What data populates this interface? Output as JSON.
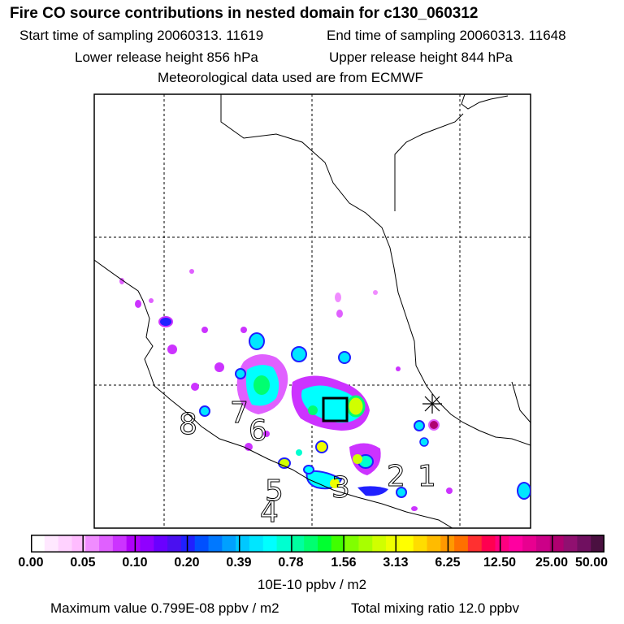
{
  "header": {
    "title": "Fire CO source contributions in nested domain for c130_060312",
    "start_label": "Start time of sampling 20060313. 11619",
    "end_label": "End time of sampling 20060313. 11648",
    "lower_label": "Lower release height  856 hPa",
    "upper_label": "Upper release height  844 hPa",
    "met_label": "Meteorological data used are from ECMWF"
  },
  "map": {
    "time_markers": [
      "8",
      "7",
      "6",
      "5",
      "4",
      "3",
      "2",
      "1"
    ],
    "receptor_marker": "*",
    "grid": "dashed",
    "coastline_color": "#000000"
  },
  "colorbar": {
    "labels": [
      "0.00",
      "0.05",
      "0.10",
      "0.20",
      "0.39",
      "0.78",
      "1.56",
      "3.13",
      "6.25",
      "12.50",
      "25.00",
      "50.00"
    ],
    "colors": [
      "#ffffff",
      "#ffe8ff",
      "#ffd2ff",
      "#ffbcff",
      "#f08cff",
      "#e060ff",
      "#cc33ff",
      "#b000f8",
      "#9000ff",
      "#6a00ff",
      "#4a10f0",
      "#2020ff",
      "#0050ff",
      "#0078ff",
      "#00a0ff",
      "#00c8ff",
      "#00e6ff",
      "#00ffff",
      "#00ffd0",
      "#00ffa0",
      "#00ff70",
      "#00ff30",
      "#40ff00",
      "#80ff00",
      "#a8ff00",
      "#d0ff00",
      "#eeff00",
      "#ffff00",
      "#ffdd00",
      "#ffbb00",
      "#ff9900",
      "#ff7000",
      "#ff3030",
      "#ff0050",
      "#ff0080",
      "#ff00a0",
      "#e80090",
      "#cc0088",
      "#b00070",
      "#901070",
      "#701060",
      "#4a1040"
    ],
    "units": "10E-10 ppbv / m2"
  },
  "footer": {
    "max_label": "Maximum value  0.799E-08 ppbv / m2",
    "total_label": "Total mixing ratio       12.0 ppbv"
  }
}
